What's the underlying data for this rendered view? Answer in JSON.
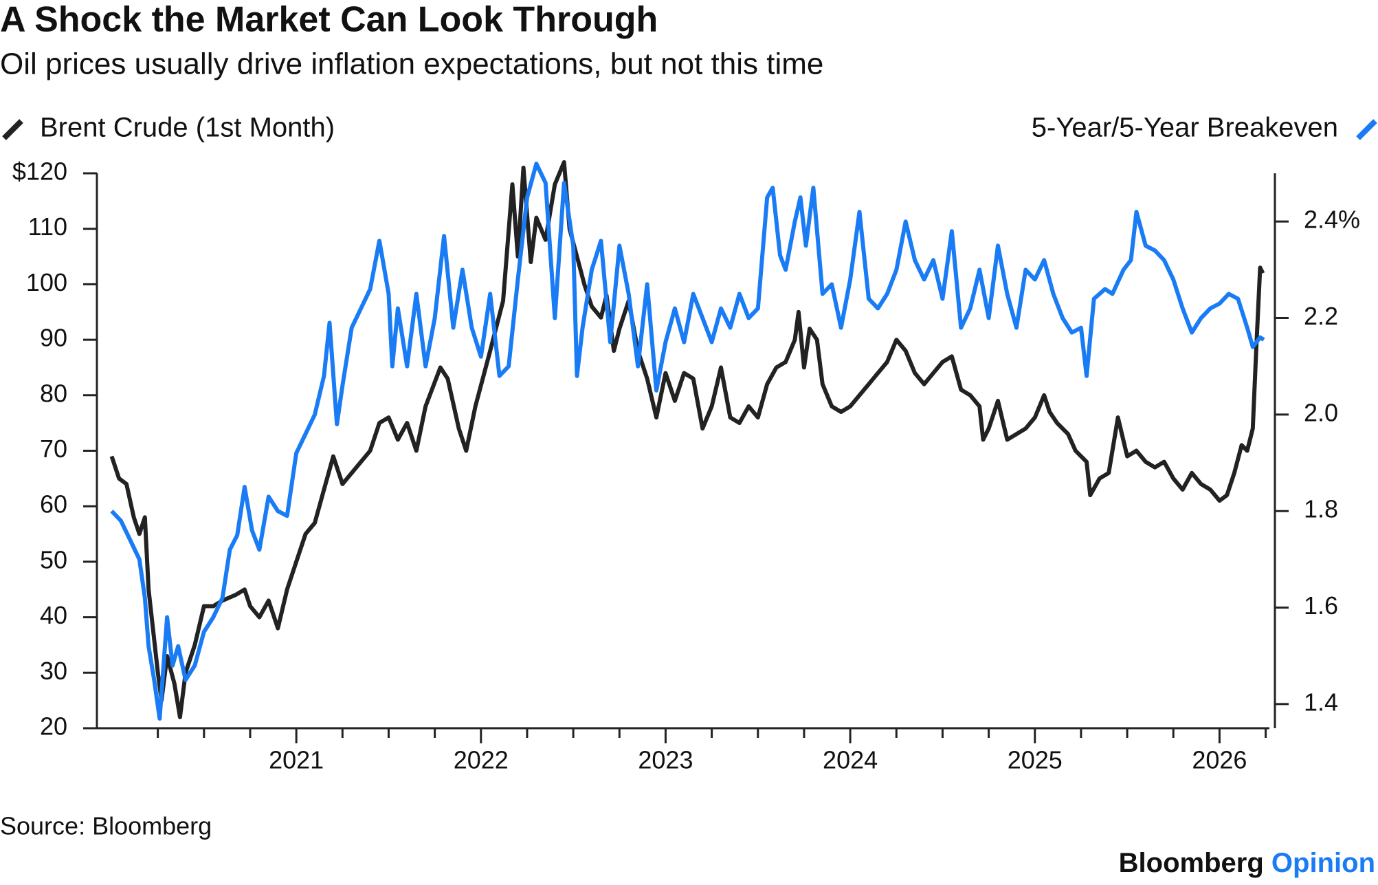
{
  "chart_data": {
    "type": "line",
    "title": "A Shock the Market Can Look Through",
    "subtitle": "Oil prices usually drive inflation expectations, but not this time",
    "source": "Source: Bloomberg",
    "brand": [
      "Bloomberg",
      "Opinion"
    ],
    "xlim": [
      2019.92,
      2026.3
    ],
    "xticks": [
      2021,
      2022,
      2023,
      2024,
      2025,
      2026
    ],
    "xminorticks": [
      2020.25,
      2020.5,
      2020.75,
      2021.25,
      2021.5,
      2021.75,
      2022.25,
      2022.5,
      2022.75,
      2023.25,
      2023.5,
      2023.75,
      2024.25,
      2024.5,
      2024.75,
      2025.25,
      2025.5,
      2025.75,
      2026.25
    ],
    "ylim": [
      20,
      120
    ],
    "yticks": [
      20,
      30,
      40,
      50,
      60,
      70,
      80,
      90,
      100,
      110,
      {
        "value": 120,
        "label": "$120"
      }
    ],
    "y2lim": [
      1.35,
      2.5
    ],
    "y2ticks": [
      1.4,
      1.6,
      1.8,
      {
        "value": 2,
        "label": "2.0"
      },
      2.2,
      {
        "value": 2.4,
        "label": "2.4%"
      }
    ],
    "series": [
      {
        "name": "Brent Crude (1st Month)",
        "color": "#222222",
        "axis": "y",
        "x": [
          2020.0,
          2020.04,
          2020.08,
          2020.12,
          2020.15,
          2020.18,
          2020.2,
          2020.25,
          2020.27,
          2020.3,
          2020.34,
          2020.37,
          2020.4,
          2020.45,
          2020.5,
          2020.55,
          2020.6,
          2020.67,
          2020.72,
          2020.75,
          2020.8,
          2020.85,
          2020.9,
          2020.95,
          2021.0,
          2021.05,
          2021.1,
          2021.15,
          2021.2,
          2021.25,
          2021.3,
          2021.4,
          2021.45,
          2021.5,
          2021.55,
          2021.6,
          2021.65,
          2021.7,
          2021.78,
          2021.82,
          2021.88,
          2021.92,
          2021.97,
          2022.05,
          2022.12,
          2022.17,
          2022.2,
          2022.23,
          2022.27,
          2022.3,
          2022.35,
          2022.4,
          2022.45,
          2022.48,
          2022.52,
          2022.56,
          2022.6,
          2022.65,
          2022.68,
          2022.72,
          2022.75,
          2022.8,
          2022.85,
          2022.9,
          2022.95,
          2023.0,
          2023.05,
          2023.1,
          2023.15,
          2023.2,
          2023.25,
          2023.3,
          2023.35,
          2023.4,
          2023.45,
          2023.5,
          2023.55,
          2023.6,
          2023.65,
          2023.7,
          2023.72,
          2023.75,
          2023.78,
          2023.82,
          2023.85,
          2023.9,
          2023.95,
          2024.0,
          2024.05,
          2024.1,
          2024.15,
          2024.2,
          2024.25,
          2024.3,
          2024.35,
          2024.4,
          2024.45,
          2024.5,
          2024.55,
          2024.6,
          2024.65,
          2024.7,
          2024.72,
          2024.75,
          2024.8,
          2024.85,
          2024.9,
          2024.95,
          2025.0,
          2025.05,
          2025.08,
          2025.12,
          2025.18,
          2025.22,
          2025.28,
          2025.3,
          2025.35,
          2025.4,
          2025.45,
          2025.5,
          2025.55,
          2025.6,
          2025.65,
          2025.7,
          2025.75,
          2025.8,
          2025.85,
          2025.9,
          2025.95,
          2026.0,
          2026.04,
          2026.08,
          2026.12,
          2026.15,
          2026.18,
          2026.2,
          2026.22,
          2026.235
        ],
        "values": [
          69,
          65,
          64,
          58,
          55,
          58,
          45,
          30,
          25,
          33,
          28,
          22,
          30,
          35,
          42,
          42,
          43,
          44,
          45,
          42,
          40,
          43,
          38,
          45,
          50,
          55,
          57,
          63,
          69,
          64,
          66,
          70,
          75,
          76,
          72,
          75,
          70,
          78,
          85,
          83,
          74,
          70,
          78,
          88,
          97,
          118,
          105,
          121,
          104,
          112,
          108,
          118,
          122,
          110,
          105,
          100,
          96,
          94,
          98,
          88,
          92,
          97,
          88,
          83,
          76,
          84,
          79,
          84,
          83,
          74,
          78,
          85,
          76,
          75,
          78,
          76,
          82,
          85,
          86,
          90,
          95,
          85,
          92,
          90,
          82,
          78,
          77,
          78,
          80,
          82,
          84,
          86,
          90,
          88,
          84,
          82,
          84,
          86,
          87,
          81,
          80,
          78,
          72,
          74,
          79,
          72,
          73,
          74,
          76,
          80,
          77,
          75,
          73,
          70,
          68,
          62,
          65,
          66,
          76,
          69,
          70,
          68,
          67,
          68,
          65,
          63,
          66,
          64,
          63,
          61,
          62,
          66,
          71,
          70,
          74,
          89,
          103,
          102
        ]
      },
      {
        "name": "5-Year/5-Year Breakeven",
        "color": "#1a7cf5",
        "axis": "y2",
        "x": [
          2020.0,
          2020.05,
          2020.1,
          2020.15,
          2020.18,
          2020.2,
          2020.23,
          2020.26,
          2020.3,
          2020.33,
          2020.36,
          2020.4,
          2020.45,
          2020.5,
          2020.55,
          2020.6,
          2020.64,
          2020.68,
          2020.72,
          2020.76,
          2020.8,
          2020.85,
          2020.9,
          2020.95,
          2021.0,
          2021.05,
          2021.1,
          2021.15,
          2021.18,
          2021.22,
          2021.25,
          2021.3,
          2021.35,
          2021.4,
          2021.45,
          2021.5,
          2021.52,
          2021.55,
          2021.6,
          2021.65,
          2021.7,
          2021.75,
          2021.8,
          2021.85,
          2021.9,
          2021.95,
          2022.0,
          2022.05,
          2022.1,
          2022.15,
          2022.2,
          2022.25,
          2022.3,
          2022.35,
          2022.4,
          2022.45,
          2022.5,
          2022.52,
          2022.55,
          2022.6,
          2022.65,
          2022.7,
          2022.75,
          2022.8,
          2022.85,
          2022.9,
          2022.95,
          2023.0,
          2023.05,
          2023.1,
          2023.15,
          2023.2,
          2023.25,
          2023.3,
          2023.35,
          2023.4,
          2023.45,
          2023.5,
          2023.55,
          2023.58,
          2023.62,
          2023.65,
          2023.7,
          2023.73,
          2023.76,
          2023.8,
          2023.85,
          2023.9,
          2023.95,
          2024.0,
          2024.05,
          2024.1,
          2024.15,
          2024.2,
          2024.25,
          2024.3,
          2024.35,
          2024.4,
          2024.45,
          2024.5,
          2024.55,
          2024.6,
          2024.65,
          2024.7,
          2024.75,
          2024.8,
          2024.85,
          2024.9,
          2024.95,
          2025.0,
          2025.05,
          2025.1,
          2025.15,
          2025.2,
          2025.25,
          2025.28,
          2025.32,
          2025.38,
          2025.42,
          2025.48,
          2025.52,
          2025.55,
          2025.6,
          2025.65,
          2025.7,
          2025.75,
          2025.8,
          2025.85,
          2025.9,
          2025.95,
          2026.0,
          2026.05,
          2026.1,
          2026.15,
          2026.18,
          2026.22,
          2026.24
        ],
        "values": [
          1.8,
          1.78,
          1.74,
          1.7,
          1.62,
          1.52,
          1.45,
          1.37,
          1.58,
          1.48,
          1.52,
          1.45,
          1.48,
          1.55,
          1.58,
          1.62,
          1.72,
          1.75,
          1.85,
          1.76,
          1.72,
          1.83,
          1.8,
          1.79,
          1.92,
          1.96,
          2.0,
          2.08,
          2.19,
          1.98,
          2.06,
          2.18,
          2.22,
          2.26,
          2.36,
          2.25,
          2.1,
          2.22,
          2.1,
          2.25,
          2.1,
          2.2,
          2.37,
          2.18,
          2.3,
          2.18,
          2.12,
          2.25,
          2.08,
          2.1,
          2.28,
          2.45,
          2.52,
          2.48,
          2.2,
          2.48,
          2.35,
          2.08,
          2.18,
          2.3,
          2.36,
          2.15,
          2.35,
          2.25,
          2.1,
          2.27,
          2.05,
          2.15,
          2.22,
          2.15,
          2.25,
          2.2,
          2.15,
          2.22,
          2.18,
          2.25,
          2.2,
          2.22,
          2.45,
          2.47,
          2.33,
          2.3,
          2.4,
          2.45,
          2.35,
          2.47,
          2.25,
          2.27,
          2.18,
          2.28,
          2.42,
          2.24,
          2.22,
          2.25,
          2.3,
          2.4,
          2.32,
          2.28,
          2.32,
          2.24,
          2.38,
          2.18,
          2.22,
          2.3,
          2.2,
          2.35,
          2.25,
          2.18,
          2.3,
          2.28,
          2.32,
          2.25,
          2.2,
          2.17,
          2.18,
          2.08,
          2.24,
          2.26,
          2.25,
          2.3,
          2.32,
          2.42,
          2.35,
          2.34,
          2.32,
          2.28,
          2.22,
          2.17,
          2.2,
          2.22,
          2.23,
          2.25,
          2.24,
          2.18,
          2.14,
          2.16,
          2.155
        ]
      }
    ]
  }
}
